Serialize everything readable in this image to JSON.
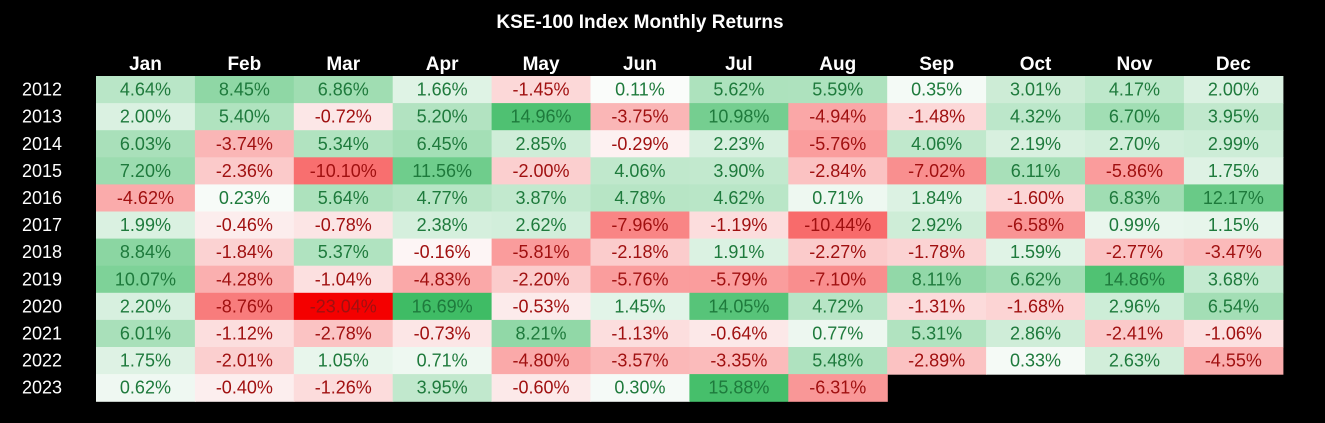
{
  "chart_data": {
    "type": "heatmap",
    "title": "KSE-100 Index Monthly Returns",
    "columns": [
      "Jan",
      "Feb",
      "Mar",
      "Apr",
      "May",
      "Jun",
      "Jul",
      "Aug",
      "Sep",
      "Oct",
      "Nov",
      "Dec"
    ],
    "rows": [
      "2012",
      "2013",
      "2014",
      "2015",
      "2016",
      "2017",
      "2018",
      "2019",
      "2020",
      "2021",
      "2022",
      "2023"
    ],
    "unit": "%",
    "values": [
      [
        4.64,
        8.45,
        6.86,
        1.66,
        -1.45,
        0.11,
        5.62,
        5.59,
        0.35,
        3.01,
        4.17,
        2.0
      ],
      [
        2.0,
        5.4,
        -0.72,
        5.2,
        14.96,
        -3.75,
        10.98,
        -4.94,
        -1.48,
        4.32,
        6.7,
        3.95
      ],
      [
        6.03,
        -3.74,
        5.34,
        6.45,
        2.85,
        -0.29,
        2.23,
        -5.76,
        4.06,
        2.19,
        2.7,
        2.99
      ],
      [
        7.2,
        -2.36,
        -10.1,
        11.56,
        -2.0,
        4.06,
        3.9,
        -2.84,
        -7.02,
        6.11,
        -5.86,
        1.75
      ],
      [
        -4.62,
        0.23,
        5.64,
        4.77,
        3.87,
        4.78,
        4.62,
        0.71,
        1.84,
        -1.6,
        6.83,
        12.17
      ],
      [
        1.99,
        -0.46,
        -0.78,
        2.38,
        2.62,
        -7.96,
        -1.19,
        -10.44,
        2.92,
        -6.58,
        0.99,
        1.15
      ],
      [
        8.84,
        -1.84,
        5.37,
        -0.16,
        -5.81,
        -2.18,
        1.91,
        -2.27,
        -1.78,
        1.59,
        -2.77,
        -3.47
      ],
      [
        10.07,
        -4.28,
        -1.04,
        -4.83,
        -2.2,
        -5.76,
        -5.79,
        -7.1,
        8.11,
        6.62,
        14.86,
        3.68
      ],
      [
        2.2,
        -8.76,
        -23.04,
        16.69,
        -0.53,
        1.45,
        14.05,
        4.72,
        -1.31,
        -1.68,
        2.96,
        6.54
      ],
      [
        6.01,
        -1.12,
        -2.78,
        -0.73,
        8.21,
        -1.13,
        -0.64,
        0.77,
        5.31,
        2.86,
        -2.41,
        -1.06
      ],
      [
        1.75,
        -2.01,
        1.05,
        0.71,
        -4.8,
        -3.57,
        -3.35,
        5.48,
        -2.89,
        0.33,
        2.63,
        -4.55
      ],
      [
        0.62,
        -0.4,
        -1.26,
        3.95,
        -0.6,
        0.3,
        15.88,
        -6.31,
        null,
        null,
        null,
        null
      ]
    ],
    "colors": {
      "background": "#000000",
      "text": "#ffffff",
      "positive_text": "#1e7a3c",
      "negative_text": "#a01010",
      "positive_max": "#3cbb63",
      "negative_max": "#f40000",
      "neutral": "#fdfdfd"
    }
  }
}
